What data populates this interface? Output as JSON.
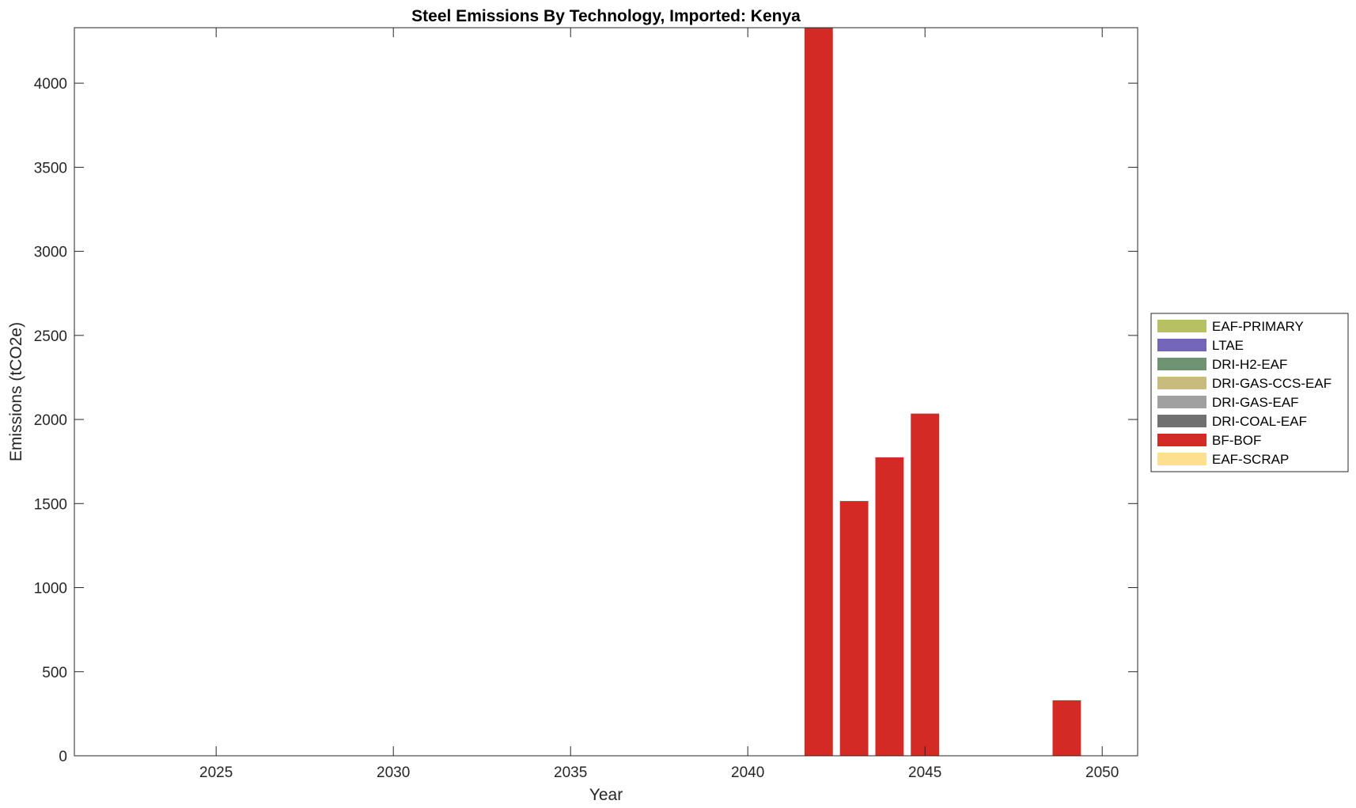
{
  "chart_data": {
    "type": "bar",
    "stacked": true,
    "title": "Steel Emissions By Technology, Imported: Kenya",
    "xlabel": "Year",
    "ylabel": "Emissions (tCO2e)",
    "xlim": [
      2021,
      2051
    ],
    "ylim": [
      0,
      4330
    ],
    "xticks": [
      2025,
      2030,
      2035,
      2040,
      2045,
      2050
    ],
    "yticks": [
      0,
      500,
      1000,
      1500,
      2000,
      2500,
      3000,
      3500,
      4000
    ],
    "grid": false,
    "legend_position": "right",
    "x": [
      2042,
      2043,
      2044,
      2045,
      2049
    ],
    "series": [
      {
        "name": "EAF-PRIMARY",
        "color": "#b8c064",
        "values": [
          0,
          0,
          0,
          0,
          0
        ]
      },
      {
        "name": "LTAE",
        "color": "#7466b8",
        "values": [
          0,
          0,
          0,
          0,
          0
        ]
      },
      {
        "name": "DRI-H2-EAF",
        "color": "#6f9373",
        "values": [
          0,
          0,
          0,
          0,
          0
        ]
      },
      {
        "name": "DRI-GAS-CCS-EAF",
        "color": "#c7bb7d",
        "values": [
          0,
          0,
          0,
          0,
          0
        ]
      },
      {
        "name": "DRI-GAS-EAF",
        "color": "#a0a0a0",
        "values": [
          0,
          0,
          0,
          0,
          0
        ]
      },
      {
        "name": "DRI-COAL-EAF",
        "color": "#707070",
        "values": [
          0,
          0,
          0,
          0,
          0
        ]
      },
      {
        "name": "BF-BOF",
        "color": "#d32a25",
        "values": [
          4330,
          1515,
          1775,
          2035,
          330
        ]
      },
      {
        "name": "EAF-SCRAP",
        "color": "#fde08f",
        "values": [
          0,
          0,
          0,
          0,
          0
        ]
      }
    ]
  }
}
